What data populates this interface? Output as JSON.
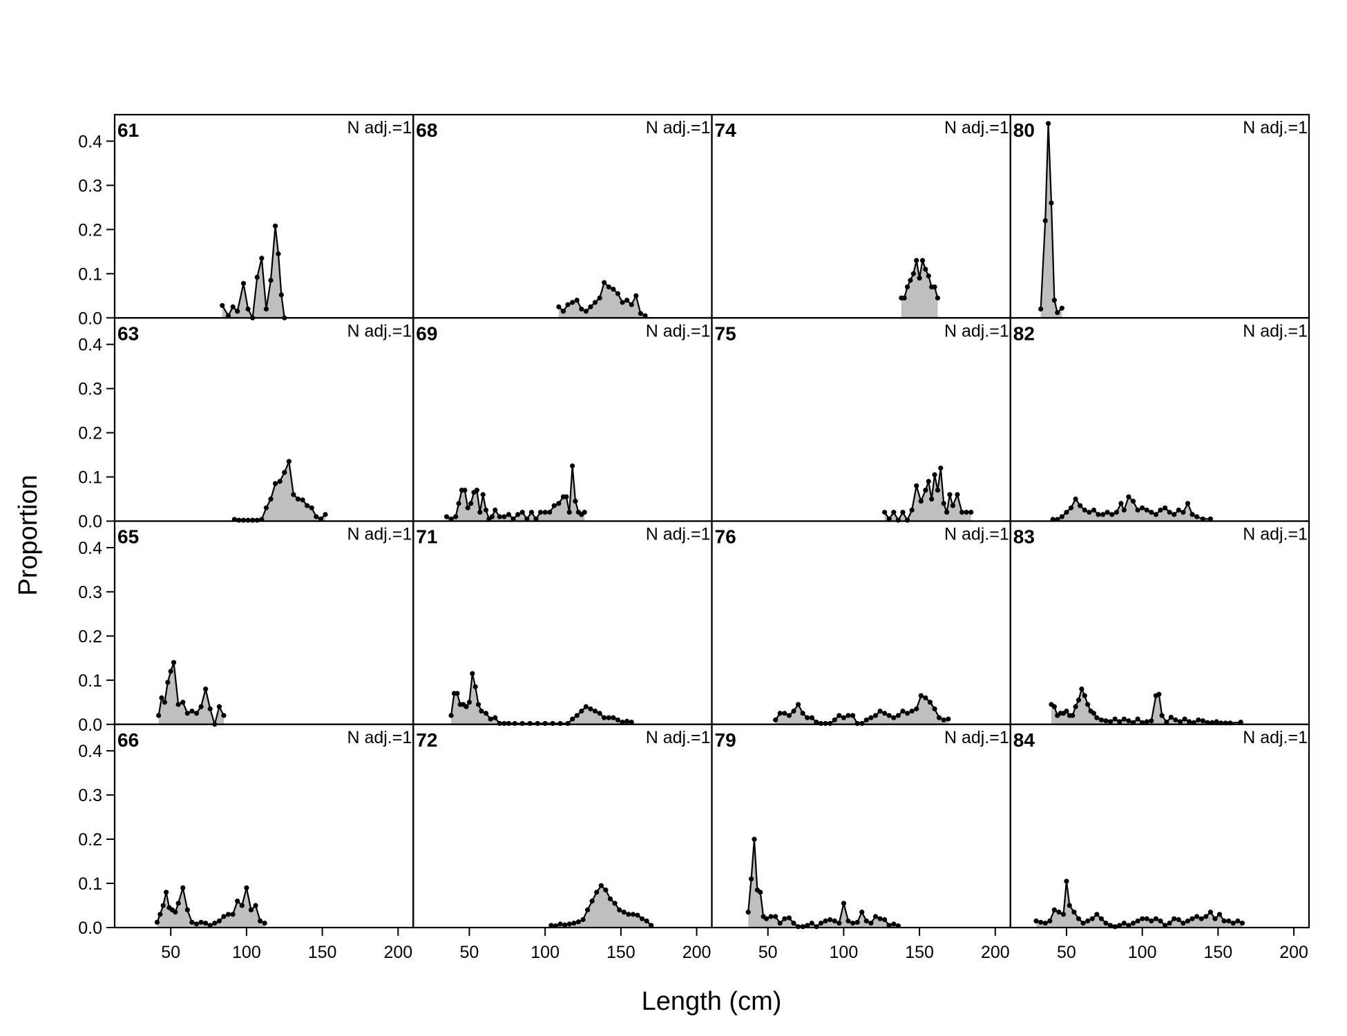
{
  "chart_data": {
    "type": "area",
    "xlabel": "Length (cm)",
    "ylabel": "Proportion",
    "xlim": [
      13,
      210
    ],
    "ylim": [
      0,
      0.46
    ],
    "xticks": [
      50,
      100,
      150,
      200
    ],
    "yticks": [
      0.0,
      0.1,
      0.2,
      0.3,
      0.4
    ],
    "ytick_labels": [
      "0.0",
      "0.1",
      "0.2",
      "0.3",
      "0.4"
    ],
    "n_label": "N adj.=1",
    "fill_color": "#bfbfbf",
    "line_color": "#000000",
    "layout": {
      "rows": 4,
      "cols": 4,
      "order": "column-major"
    },
    "panels": [
      {
        "id": "61",
        "x": [
          84,
          88,
          91,
          94,
          98,
          101,
          104,
          107,
          110,
          113,
          116,
          119,
          121,
          123,
          125
        ],
        "y": [
          0.028,
          0.005,
          0.025,
          0.015,
          0.078,
          0.02,
          0.0,
          0.092,
          0.135,
          0.02,
          0.085,
          0.208,
          0.145,
          0.052,
          0.0
        ]
      },
      {
        "id": "63",
        "x": [
          92,
          95,
          98,
          101,
          104,
          107,
          110,
          113,
          116,
          119,
          122,
          125,
          128,
          131,
          134,
          137,
          140,
          143,
          146,
          149,
          152
        ],
        "y": [
          0.004,
          0.002,
          0.002,
          0.002,
          0.002,
          0.002,
          0.004,
          0.03,
          0.05,
          0.085,
          0.09,
          0.11,
          0.135,
          0.06,
          0.05,
          0.048,
          0.035,
          0.03,
          0.01,
          0.005,
          0.015
        ]
      },
      {
        "id": "65",
        "x": [
          42,
          44,
          46,
          48,
          50,
          52,
          55,
          58,
          61,
          64,
          67,
          70,
          73,
          76,
          79,
          82,
          85
        ],
        "y": [
          0.02,
          0.06,
          0.05,
          0.095,
          0.12,
          0.14,
          0.045,
          0.05,
          0.025,
          0.03,
          0.025,
          0.04,
          0.08,
          0.035,
          0.0,
          0.04,
          0.02
        ]
      },
      {
        "id": "66",
        "x": [
          41,
          43,
          45,
          47,
          49,
          51,
          53,
          55,
          58,
          61,
          64,
          67,
          70,
          73,
          76,
          79,
          82,
          85,
          88,
          91,
          94,
          97,
          100,
          103,
          106,
          109,
          112
        ],
        "y": [
          0.012,
          0.03,
          0.05,
          0.08,
          0.045,
          0.04,
          0.035,
          0.055,
          0.09,
          0.04,
          0.012,
          0.008,
          0.012,
          0.01,
          0.005,
          0.01,
          0.015,
          0.025,
          0.03,
          0.03,
          0.06,
          0.05,
          0.09,
          0.04,
          0.05,
          0.015,
          0.01
        ]
      },
      {
        "id": "68",
        "x": [
          109,
          112,
          115,
          118,
          121,
          124,
          127,
          130,
          133,
          136,
          139,
          142,
          145,
          148,
          151,
          154,
          157,
          160,
          163,
          166
        ],
        "y": [
          0.025,
          0.015,
          0.03,
          0.035,
          0.04,
          0.02,
          0.015,
          0.025,
          0.035,
          0.045,
          0.08,
          0.07,
          0.065,
          0.055,
          0.035,
          0.04,
          0.03,
          0.05,
          0.01,
          0.005
        ]
      },
      {
        "id": "69",
        "x": [
          35,
          38,
          41,
          43,
          45,
          47,
          49,
          51,
          53,
          55,
          57,
          59,
          61,
          63,
          65,
          67,
          70,
          73,
          76,
          79,
          82,
          85,
          88,
          91,
          94,
          97,
          100,
          103,
          106,
          109,
          112,
          114,
          116,
          118,
          120,
          122,
          124,
          126
        ],
        "y": [
          0.01,
          0.005,
          0.01,
          0.04,
          0.07,
          0.07,
          0.03,
          0.04,
          0.065,
          0.07,
          0.02,
          0.06,
          0.025,
          0.005,
          0.01,
          0.025,
          0.01,
          0.01,
          0.015,
          0.005,
          0.015,
          0.02,
          0.005,
          0.02,
          0.005,
          0.02,
          0.02,
          0.02,
          0.035,
          0.04,
          0.055,
          0.055,
          0.02,
          0.125,
          0.045,
          0.02,
          0.015,
          0.02
        ]
      },
      {
        "id": "71",
        "x": [
          38,
          40,
          42,
          44,
          46,
          48,
          50,
          52,
          54,
          56,
          58,
          61,
          64,
          67,
          70,
          73,
          76,
          80,
          85,
          90,
          95,
          100,
          105,
          110,
          115,
          118,
          121,
          124,
          127,
          130,
          133,
          136,
          139,
          142,
          145,
          148,
          151,
          154,
          157
        ],
        "y": [
          0.02,
          0.07,
          0.07,
          0.045,
          0.045,
          0.04,
          0.05,
          0.115,
          0.085,
          0.045,
          0.03,
          0.025,
          0.012,
          0.015,
          0.002,
          0.002,
          0.002,
          0.002,
          0.002,
          0.002,
          0.002,
          0.002,
          0.002,
          0.002,
          0.002,
          0.012,
          0.02,
          0.03,
          0.04,
          0.035,
          0.03,
          0.025,
          0.015,
          0.015,
          0.015,
          0.01,
          0.005,
          0.007,
          0.005
        ]
      },
      {
        "id": "72",
        "x": [
          104,
          107,
          110,
          113,
          116,
          119,
          122,
          125,
          128,
          131,
          134,
          137,
          140,
          143,
          146,
          149,
          152,
          155,
          158,
          161,
          164,
          167,
          170
        ],
        "y": [
          0.005,
          0.004,
          0.008,
          0.006,
          0.008,
          0.01,
          0.013,
          0.018,
          0.04,
          0.06,
          0.08,
          0.095,
          0.085,
          0.065,
          0.055,
          0.04,
          0.035,
          0.03,
          0.03,
          0.028,
          0.02,
          0.015,
          0.005
        ]
      },
      {
        "id": "74",
        "x": [
          138,
          140,
          142,
          144,
          146,
          148,
          150,
          152,
          154,
          156,
          158,
          160,
          162
        ],
        "y": [
          0.045,
          0.045,
          0.07,
          0.085,
          0.1,
          0.13,
          0.09,
          0.13,
          0.11,
          0.095,
          0.07,
          0.07,
          0.045
        ]
      },
      {
        "id": "75",
        "x": [
          127,
          130,
          133,
          136,
          139,
          142,
          145,
          148,
          151,
          154,
          156,
          158,
          160,
          162,
          164,
          166,
          168,
          170,
          172,
          175,
          178,
          181,
          184
        ],
        "y": [
          0.02,
          0.005,
          0.02,
          0.002,
          0.02,
          0.002,
          0.025,
          0.08,
          0.045,
          0.07,
          0.09,
          0.05,
          0.105,
          0.07,
          0.12,
          0.04,
          0.02,
          0.06,
          0.035,
          0.06,
          0.02,
          0.02,
          0.02
        ]
      },
      {
        "id": "76",
        "x": [
          55,
          58,
          61,
          64,
          67,
          70,
          73,
          76,
          79,
          82,
          85,
          88,
          91,
          94,
          97,
          100,
          103,
          106,
          109,
          112,
          115,
          118,
          121,
          124,
          127,
          130,
          133,
          136,
          139,
          142,
          145,
          148,
          151,
          154,
          157,
          160,
          163,
          166,
          169
        ],
        "y": [
          0.01,
          0.025,
          0.025,
          0.02,
          0.03,
          0.045,
          0.025,
          0.015,
          0.015,
          0.005,
          0.002,
          0.002,
          0.002,
          0.01,
          0.02,
          0.015,
          0.02,
          0.02,
          0.002,
          0.002,
          0.01,
          0.015,
          0.02,
          0.03,
          0.025,
          0.02,
          0.015,
          0.02,
          0.03,
          0.025,
          0.03,
          0.035,
          0.065,
          0.06,
          0.05,
          0.035,
          0.015,
          0.01,
          0.012
        ]
      },
      {
        "id": "79",
        "x": [
          37,
          39,
          41,
          43,
          45,
          47,
          49,
          52,
          55,
          58,
          61,
          64,
          67,
          70,
          73,
          76,
          79,
          82,
          85,
          88,
          91,
          94,
          97,
          100,
          103,
          106,
          109,
          112,
          115,
          118,
          121,
          124,
          127,
          130,
          133,
          136
        ],
        "y": [
          0.035,
          0.11,
          0.2,
          0.085,
          0.08,
          0.025,
          0.02,
          0.025,
          0.025,
          0.01,
          0.02,
          0.022,
          0.01,
          0.002,
          0.002,
          0.005,
          0.01,
          0.002,
          0.01,
          0.015,
          0.018,
          0.015,
          0.01,
          0.055,
          0.015,
          0.01,
          0.012,
          0.035,
          0.015,
          0.01,
          0.025,
          0.02,
          0.018,
          0.005,
          0.008,
          0.004
        ]
      },
      {
        "id": "80",
        "x": [
          33,
          36,
          38,
          40,
          42,
          44,
          47
        ],
        "y": [
          0.02,
          0.22,
          0.44,
          0.26,
          0.04,
          0.012,
          0.022
        ]
      },
      {
        "id": "82",
        "x": [
          41,
          44,
          47,
          50,
          53,
          56,
          59,
          62,
          65,
          68,
          71,
          74,
          77,
          80,
          83,
          86,
          88,
          91,
          94,
          97,
          100,
          103,
          106,
          109,
          112,
          115,
          118,
          121,
          124,
          127,
          130,
          133,
          136,
          140,
          145
        ],
        "y": [
          0.004,
          0.004,
          0.01,
          0.02,
          0.03,
          0.05,
          0.035,
          0.025,
          0.02,
          0.025,
          0.015,
          0.015,
          0.02,
          0.015,
          0.02,
          0.04,
          0.025,
          0.055,
          0.045,
          0.025,
          0.03,
          0.025,
          0.02,
          0.015,
          0.025,
          0.03,
          0.02,
          0.015,
          0.025,
          0.02,
          0.04,
          0.015,
          0.01,
          0.005,
          0.005
        ]
      },
      {
        "id": "83",
        "x": [
          40,
          42,
          44,
          46,
          48,
          50,
          52,
          54,
          56,
          58,
          60,
          62,
          64,
          66,
          68,
          70,
          73,
          76,
          79,
          82,
          85,
          88,
          91,
          94,
          97,
          100,
          103,
          106,
          109,
          111,
          113,
          116,
          119,
          122,
          125,
          128,
          131,
          134,
          137,
          140,
          143,
          146,
          149,
          152,
          155,
          158,
          165
        ],
        "y": [
          0.045,
          0.04,
          0.02,
          0.025,
          0.025,
          0.03,
          0.02,
          0.02,
          0.04,
          0.055,
          0.08,
          0.065,
          0.045,
          0.03,
          0.025,
          0.015,
          0.01,
          0.008,
          0.006,
          0.012,
          0.006,
          0.012,
          0.008,
          0.004,
          0.012,
          0.004,
          0.006,
          0.008,
          0.065,
          0.068,
          0.02,
          0.005,
          0.016,
          0.01,
          0.006,
          0.012,
          0.006,
          0.004,
          0.01,
          0.008,
          0.004,
          0.004,
          0.006,
          0.003,
          0.003,
          0.003,
          0.005
        ]
      },
      {
        "id": "84",
        "x": [
          30,
          33,
          36,
          39,
          42,
          45,
          48,
          50,
          52,
          55,
          58,
          61,
          64,
          67,
          70,
          73,
          76,
          79,
          82,
          85,
          88,
          91,
          94,
          97,
          100,
          103,
          106,
          109,
          112,
          115,
          118,
          121,
          124,
          127,
          130,
          133,
          136,
          139,
          142,
          145,
          148,
          151,
          154,
          157,
          160,
          163,
          166
        ],
        "y": [
          0.015,
          0.012,
          0.01,
          0.015,
          0.04,
          0.035,
          0.03,
          0.105,
          0.05,
          0.035,
          0.02,
          0.01,
          0.015,
          0.02,
          0.03,
          0.02,
          0.01,
          0.005,
          0.002,
          0.005,
          0.01,
          0.005,
          0.01,
          0.015,
          0.02,
          0.02,
          0.015,
          0.02,
          0.015,
          0.005,
          0.01,
          0.02,
          0.018,
          0.01,
          0.015,
          0.02,
          0.025,
          0.02,
          0.025,
          0.035,
          0.02,
          0.03,
          0.015,
          0.015,
          0.01,
          0.015,
          0.01
        ]
      }
    ]
  }
}
